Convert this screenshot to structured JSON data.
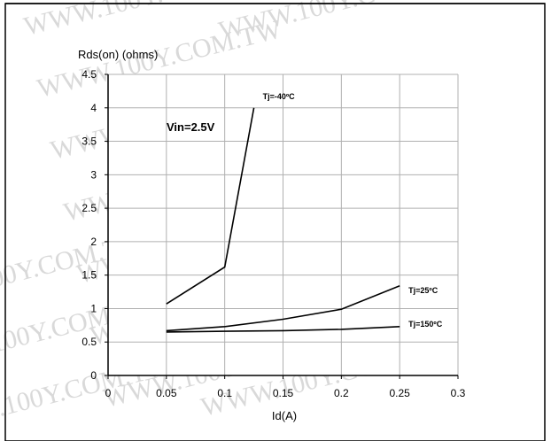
{
  "watermark": "WWW.100Y.COM.TW",
  "colors": {
    "line": "#000000",
    "grid": "#b0b0b0",
    "watermark": "#d9d9d9",
    "frame": "#000000"
  },
  "chart_data": {
    "type": "line",
    "title": "",
    "ylabel": "Rds(on) (ohms)",
    "xlabel": "Id(A)",
    "annotation": "Vin=2.5V",
    "xlim": [
      0,
      0.3
    ],
    "ylim": [
      0,
      4.5
    ],
    "x_ticks": [
      0,
      0.05,
      0.1,
      0.15,
      0.2,
      0.25,
      0.3
    ],
    "x_tick_labels": [
      "0",
      "0.05",
      "0.1",
      "0.15",
      "0.2",
      "0.25",
      "0.3"
    ],
    "y_ticks": [
      0,
      0.5,
      1,
      1.5,
      2,
      2.5,
      3,
      3.5,
      4,
      4.5
    ],
    "y_tick_labels": [
      "0",
      "0.5",
      "1",
      "1.5",
      "2",
      "2.5",
      "3",
      "3.5",
      "4",
      "4.5"
    ],
    "grid": true,
    "series": [
      {
        "name": "Tj=-40ºC",
        "x": [
          0.05,
          0.1,
          0.125
        ],
        "y": [
          1.07,
          1.62,
          4.0
        ]
      },
      {
        "name": "Tj=25ºC",
        "x": [
          0.05,
          0.1,
          0.15,
          0.2,
          0.25
        ],
        "y": [
          0.67,
          0.73,
          0.84,
          0.99,
          1.34
        ]
      },
      {
        "name": "Tj=150ºC",
        "x": [
          0.05,
          0.1,
          0.15,
          0.2,
          0.25
        ],
        "y": [
          0.65,
          0.66,
          0.67,
          0.69,
          0.73
        ]
      }
    ]
  }
}
